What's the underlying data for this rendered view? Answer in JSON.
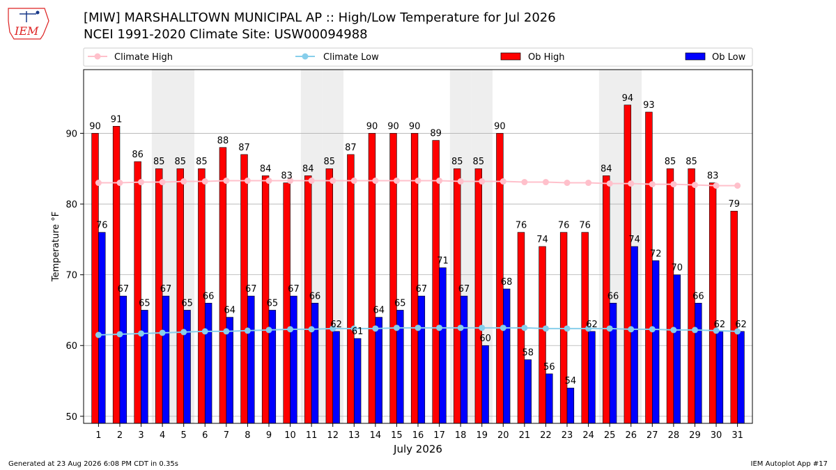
{
  "header": {
    "title": "[MIW] MARSHALLTOWN MUNICIPAL AP :: High/Low Temperature for Jul 2026",
    "subtitle": "NCEI 1991-2020 Climate Site: USW00094988",
    "logo_text": "IEM"
  },
  "footer": {
    "generated": "Generated at 23 Aug 2026 6:08 PM CDT in 0.35s",
    "app": "IEM Autoplot App #17"
  },
  "colors": {
    "ob_high": "#ff0000",
    "ob_low": "#0000ff",
    "climate_high": "#ffc0cb",
    "climate_low": "#87ceeb",
    "weekend_shade": "#eeeeee",
    "grid": "#b0b0b0"
  },
  "chart_data": {
    "type": "bar",
    "xlabel": "July 2026",
    "ylabel": "Temperature °F",
    "ylim": [
      49,
      99
    ],
    "yticks": [
      50,
      60,
      70,
      80,
      90
    ],
    "grid": true,
    "legend_placement": "top",
    "categories": [
      1,
      2,
      3,
      4,
      5,
      6,
      7,
      8,
      9,
      10,
      11,
      12,
      13,
      14,
      15,
      16,
      17,
      18,
      19,
      20,
      21,
      22,
      23,
      24,
      25,
      26,
      27,
      28,
      29,
      30,
      31
    ],
    "shaded_days": [
      4,
      5,
      11,
      12,
      18,
      19,
      25,
      26
    ],
    "series": [
      {
        "name": "Ob High",
        "kind": "bar",
        "values": [
          90,
          91,
          86,
          85,
          85,
          85,
          88,
          87,
          84,
          83,
          84,
          85,
          87,
          90,
          90,
          90,
          89,
          85,
          85,
          90,
          76,
          74,
          76,
          76,
          84,
          94,
          93,
          85,
          85,
          83,
          79
        ]
      },
      {
        "name": "Ob Low",
        "kind": "bar",
        "values": [
          76,
          67,
          65,
          67,
          65,
          66,
          64,
          67,
          65,
          67,
          66,
          62,
          61,
          64,
          65,
          67,
          71,
          67,
          60,
          68,
          58,
          56,
          54,
          62,
          66,
          74,
          72,
          70,
          66,
          62,
          62
        ]
      },
      {
        "name": "Climate High",
        "kind": "line",
        "values": [
          83.0,
          83.0,
          83.1,
          83.1,
          83.2,
          83.2,
          83.3,
          83.3,
          83.3,
          83.3,
          83.3,
          83.3,
          83.3,
          83.3,
          83.3,
          83.3,
          83.3,
          83.2,
          83.2,
          83.2,
          83.1,
          83.1,
          83.0,
          83.0,
          82.9,
          82.9,
          82.8,
          82.8,
          82.7,
          82.6,
          82.6
        ]
      },
      {
        "name": "Climate Low",
        "kind": "line",
        "values": [
          61.5,
          61.6,
          61.7,
          61.8,
          61.9,
          62.0,
          62.0,
          62.1,
          62.2,
          62.3,
          62.3,
          62.4,
          62.4,
          62.4,
          62.5,
          62.5,
          62.5,
          62.5,
          62.5,
          62.5,
          62.5,
          62.4,
          62.4,
          62.4,
          62.4,
          62.3,
          62.3,
          62.2,
          62.2,
          62.1,
          62.0
        ]
      }
    ]
  }
}
